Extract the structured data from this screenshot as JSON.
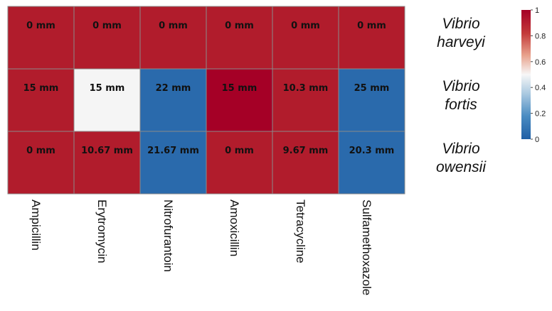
{
  "chart_data": {
    "type": "heatmap",
    "columns": [
      "Ampicillin",
      "Erytromycin",
      "Nitrofurantoin",
      "Amoxicillin",
      "Tetracycline",
      "Sulfamethoxazole"
    ],
    "rows": [
      {
        "line1": "Vibrio",
        "line2": "harveyi"
      },
      {
        "line1": "Vibrio",
        "line2": "fortis"
      },
      {
        "line1": "Vibrio",
        "line2": "owensii"
      }
    ],
    "cell_labels": [
      [
        "0 mm",
        "0 mm",
        "0 mm",
        "0 mm",
        "0 mm",
        "0 mm"
      ],
      [
        "15 mm",
        "15 mm",
        "22 mm",
        "15 mm",
        "10.3 mm",
        "25 mm"
      ],
      [
        "0 mm",
        "10.67 mm",
        "21.67 mm",
        "0 mm",
        "9.67 mm",
        "20.3 mm"
      ]
    ],
    "values": [
      [
        0.95,
        0.95,
        0.95,
        0.95,
        0.95,
        0.95
      ],
      [
        0.95,
        0.5,
        0.05,
        1.0,
        0.95,
        0.05
      ],
      [
        0.95,
        0.95,
        0.05,
        0.95,
        0.95,
        0.05
      ]
    ],
    "colorbar": {
      "range": [
        0,
        1
      ],
      "ticks": [
        "1",
        "0.8",
        "0.6",
        "0.4",
        "0.2",
        "0"
      ],
      "colors": {
        "high": "#b2182b",
        "mid": "#f7f7f7",
        "low": "#2166ac"
      }
    },
    "grid": true
  }
}
